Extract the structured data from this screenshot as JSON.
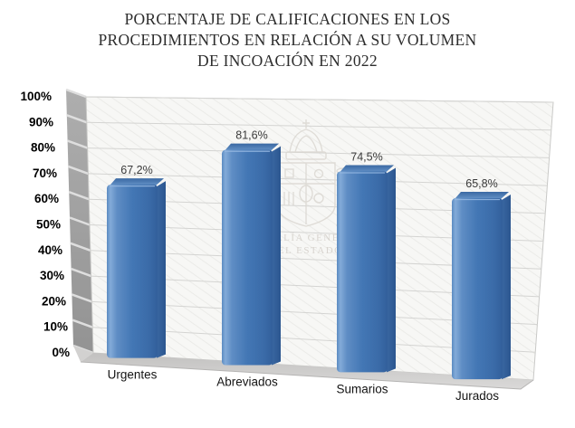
{
  "header": {
    "title_display": "PORCENTAJE DE CALIFICACIONES EN LOS\nPROCEDIMIENTOS EN RELACIÓN A SU VOLUMEN\nDE INCOACIÓN EN 2022"
  },
  "watermark": {
    "line1": "FISCALÍA GENERAL",
    "line2": "DEL ESTADO"
  },
  "y_axis": {
    "tick_labels": [
      "0%",
      "10%",
      "20%",
      "30%",
      "40%",
      "50%",
      "60%",
      "70%",
      "80%",
      "90%",
      "100%"
    ],
    "min": 0,
    "max": 100,
    "step": 10
  },
  "chart_data": {
    "type": "bar",
    "style": "3d-column",
    "title": "PORCENTAJE DE CALIFICACIONES EN LOS PROCEDIMIENTOS EN RELACIÓN A SU VOLUMEN DE INCOACIÓN EN 2022",
    "categories": [
      "Urgentes",
      "Abreviados",
      "Sumarios",
      "Jurados"
    ],
    "values": [
      67.2,
      81.6,
      74.5,
      65.8
    ],
    "value_labels": [
      "67,2%",
      "81,6%",
      "74,5%",
      "65,8%"
    ],
    "xlabel": "",
    "ylabel": "",
    "ylim": [
      0,
      100
    ],
    "grid": true,
    "legend": "none",
    "decimal_separator": ",",
    "colors": {
      "bar_front": "#4377b5",
      "bar_front_highlight": "#83abd8",
      "bar_side": "#2f5b96",
      "bar_top": "#3c6ca6",
      "wall": "#f7f7f5",
      "gridline": "#d4d4d2",
      "side_wall": "#9e9e9e",
      "floor": "#cccbca",
      "value_label": "#3a3a3a",
      "watermark": "#d6d2cc"
    }
  }
}
